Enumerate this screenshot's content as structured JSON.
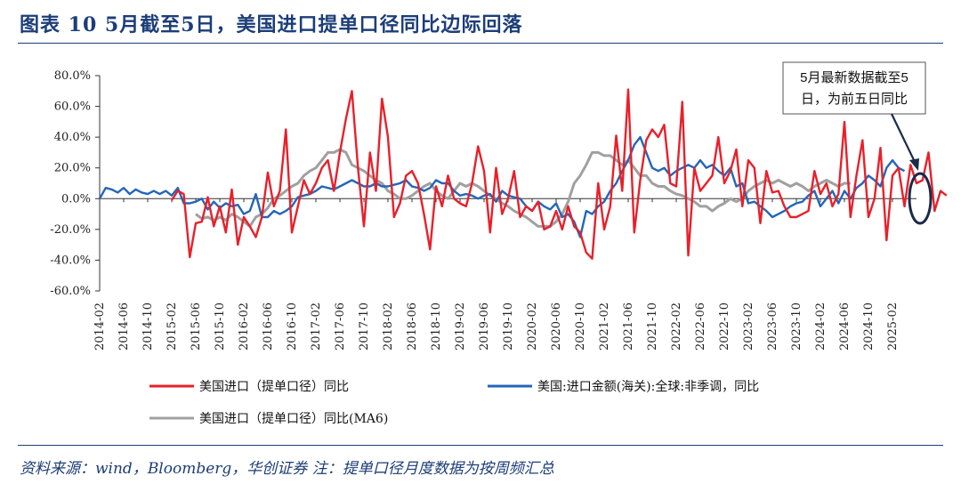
{
  "figure_title": "图表 10   5月截至5日，美国进口提单口径同比边际回落",
  "source_text": "资料来源：wind，Bloomberg，华创证券    注：提单口径月度数据为按周频汇总",
  "annotation": {
    "line1": "5月最新数据截至5",
    "line2": "日，为前五日同比"
  },
  "chart_data": {
    "type": "line",
    "ylim": [
      -60,
      80
    ],
    "y_ticks": [
      -60,
      -40,
      -20,
      0,
      20,
      40,
      60,
      80
    ],
    "y_tick_labels": [
      "-60.0%",
      "-40.0%",
      "-20.0%",
      "0.0%",
      "20.0%",
      "40.0%",
      "60.0%",
      "80.0%"
    ],
    "x_start": "2014-02",
    "x_tick_labels": [
      "2014-02",
      "2014-06",
      "2014-10",
      "2015-02",
      "2015-06",
      "2015-10",
      "2016-02",
      "2016-06",
      "2016-10",
      "2017-02",
      "2017-06",
      "2017-10",
      "2018-02",
      "2018-06",
      "2018-10",
      "2019-02",
      "2019-06",
      "2019-10",
      "2020-02",
      "2020-06",
      "2020-10",
      "2021-02",
      "2021-06",
      "2021-10",
      "2022-02",
      "2022-06",
      "2022-10",
      "2023-02",
      "2023-06",
      "2023-10",
      "2024-02",
      "2024-06",
      "2024-10",
      "2025-02"
    ],
    "series": [
      {
        "name": "美国进口（提单口径）同比",
        "color": "#e8202a",
        "start": "2015-02",
        "values": [
          -1,
          5,
          3,
          -38,
          -16,
          -15,
          1,
          -18,
          -5,
          -22,
          6,
          -30,
          -12,
          -18,
          -25,
          -12,
          17,
          -5,
          5,
          45,
          -22,
          -5,
          12,
          3,
          10,
          20,
          25,
          5,
          30,
          52,
          70,
          20,
          -18,
          30,
          5,
          65,
          40,
          -12,
          -3,
          15,
          18,
          10,
          -10,
          -33,
          8,
          -5,
          15,
          0,
          -3,
          -5,
          10,
          34,
          18,
          -22,
          20,
          -10,
          0,
          18,
          -12,
          -5,
          -8,
          -2,
          -20,
          -18,
          -8,
          -20,
          -5,
          -18,
          -22,
          -35,
          -39,
          10,
          -20,
          -5,
          41,
          5,
          71,
          -22,
          12,
          38,
          45,
          40,
          48,
          10,
          8,
          63,
          -37,
          20,
          5,
          10,
          15,
          40,
          10,
          18,
          32,
          -5,
          25,
          20,
          -16,
          18,
          4,
          5,
          -5,
          -12,
          -12,
          -10,
          -8,
          18,
          3,
          10,
          -5,
          3,
          50,
          -12,
          15,
          38,
          -12,
          0,
          33,
          -27,
          15,
          20,
          -5,
          22,
          10,
          12,
          30,
          -8,
          5,
          2
        ]
      },
      {
        "name": "美国:进口金额(海关):全球:非季调，同比",
        "color": "#2366b8",
        "start": "2014-02",
        "values": [
          0,
          7,
          6,
          4,
          7,
          3,
          6,
          4,
          3,
          5,
          3,
          5,
          2,
          7,
          -3,
          -3,
          -2,
          0,
          -7,
          -2,
          -6,
          -3,
          -5,
          -4,
          -10,
          -8,
          3,
          -12,
          -12,
          -8,
          -10,
          -8,
          -5,
          1,
          2,
          3,
          5,
          8,
          7,
          6,
          8,
          10,
          12,
          10,
          8,
          8,
          10,
          8,
          8,
          9,
          10,
          12,
          8,
          7,
          5,
          7,
          12,
          10,
          10,
          5,
          2,
          3,
          2,
          0,
          2,
          3,
          -2,
          5,
          2,
          1,
          0,
          -5,
          -8,
          -2,
          -5,
          -7,
          -3,
          -12,
          -10,
          -15,
          -25,
          -8,
          -10,
          -5,
          -2,
          5,
          10,
          18,
          25,
          35,
          40,
          30,
          20,
          18,
          20,
          15,
          18,
          20,
          22,
          20,
          25,
          20,
          22,
          18,
          15,
          20,
          8,
          10,
          -3,
          -2,
          -5,
          -8,
          -12,
          -10,
          -8,
          -5,
          -3,
          -2,
          2,
          5,
          -5,
          0,
          5,
          -3,
          5,
          0,
          7,
          10,
          15,
          12,
          8,
          20,
          25,
          20,
          18
        ]
      },
      {
        "name": "美国进口（提单口径）同比(MA6)",
        "color": "#a0a0a0",
        "start": "2015-06",
        "values": [
          -10,
          -13,
          -12,
          -14,
          -12,
          -14,
          -10,
          -12,
          -15,
          -18,
          -12,
          -10,
          -6,
          0,
          2,
          5,
          8,
          10,
          15,
          18,
          20,
          25,
          30,
          30,
          32,
          30,
          22,
          20,
          18,
          15,
          12,
          10,
          5,
          3,
          0,
          0,
          2,
          5,
          8,
          10,
          5,
          2,
          0,
          5,
          10,
          8,
          10,
          8,
          5,
          2,
          0,
          -3,
          -5,
          -8,
          -10,
          -12,
          -15,
          -18,
          -18,
          -18,
          -15,
          -10,
          -2,
          10,
          15,
          22,
          30,
          30,
          28,
          28,
          25,
          22,
          25,
          20,
          15,
          15,
          10,
          8,
          8,
          5,
          3,
          2,
          0,
          -2,
          -5,
          -5,
          -8,
          -5,
          -3,
          0,
          -2,
          0,
          5,
          8,
          10,
          12,
          10,
          12,
          10,
          8,
          10,
          8,
          5,
          8,
          10,
          12,
          10,
          8,
          10,
          10
        ]
      }
    ]
  }
}
